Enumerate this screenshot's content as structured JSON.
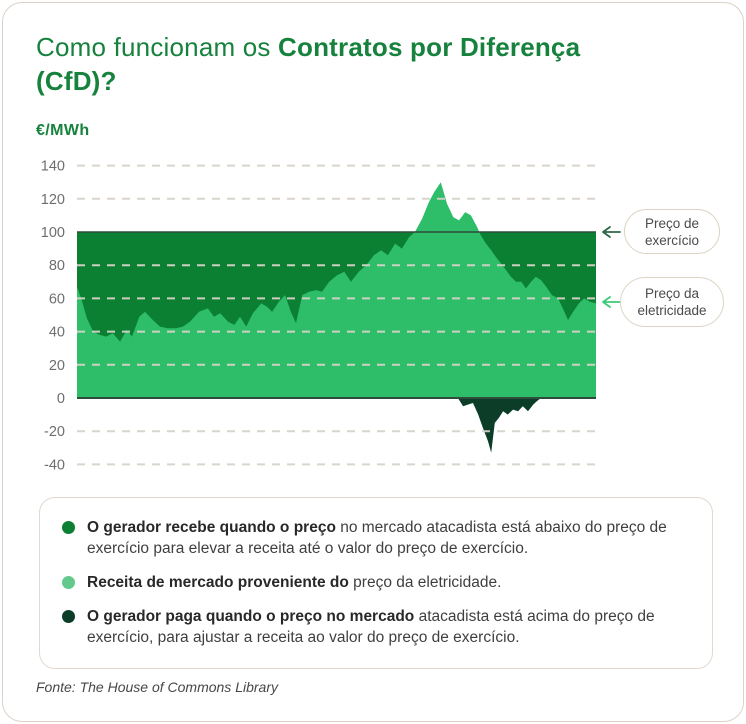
{
  "title": {
    "regular": "Como funcionam os ",
    "bold_line1": "Contratos por Diferença",
    "bold_line2": "(CfD)?"
  },
  "axis_unit": "€/MWh",
  "callouts": {
    "strike": {
      "line1": "Preço de",
      "line2": "exercício",
      "arrow_color": "#2e6648"
    },
    "electricity": {
      "line1": "Preço da",
      "line2": "eletricidade",
      "arrow_color": "#3fca77"
    }
  },
  "legend": {
    "items": [
      {
        "color": "#0b8033",
        "bold": "O gerador recebe quando o preço",
        "rest": " no mercado atacadista está abaixo do preço de exercício para elevar a receita até o valor do preço de exercício."
      },
      {
        "color": "#63ca8c",
        "bold": "Receita de mercado proveniente do",
        "rest": " preço da eletricidade."
      },
      {
        "color": "#0c3d28",
        "bold": "O gerador paga quando o preço no mercado",
        "rest": " atacadista está acima do preço de exercício, para ajustar a receita ao valor do preço de exercício."
      }
    ]
  },
  "source": "Fonte: The House of Commons Library",
  "colors": {
    "title_green": "#16823d",
    "band_green": "#0b8033",
    "price_green": "#2ebd68",
    "payback_dark_green": "#0c3d28",
    "axis_line": "#2e4d3c",
    "gridline": "#d8d2ca",
    "tick_label": "#6d6e6e",
    "border_beige": "#dcd2c7"
  },
  "chart_data": {
    "type": "area",
    "ylabel": "€/MWh",
    "ylim": [
      -40,
      140
    ],
    "yticks": [
      140,
      120,
      100,
      80,
      60,
      40,
      20,
      0,
      -20,
      -40
    ],
    "grid": "dashed-horizontal",
    "strike_price": 100,
    "band": {
      "name": "Gerador recebe (preço abaixo do exercício)",
      "from": 0,
      "to": 100,
      "color": "#0b8033"
    },
    "series": [
      {
        "name": "Preço da eletricidade (receita de mercado)",
        "color": "#2ebd68",
        "x": [
          0,
          0.8,
          1.9,
          3.1,
          4.4,
          5.6,
          6.9,
          8.3,
          9.6,
          10.6,
          12.0,
          13.1,
          14.6,
          16.0,
          17.5,
          19.1,
          20.4,
          21.8,
          23.5,
          25.2,
          26.4,
          27.6,
          29.1,
          30.3,
          31.4,
          32.6,
          33.9,
          35.5,
          36.6,
          37.6,
          38.9,
          40.1,
          41.2,
          42.2,
          43.4,
          44.7,
          46.1,
          47.2,
          48.6,
          50.1,
          51.5,
          52.8,
          54.3,
          55.7,
          57.2,
          58.6,
          59.9,
          61.3,
          62.6,
          64.0,
          65.1,
          66.5,
          67.8,
          68.8,
          70.1,
          71.3,
          72.5,
          73.6,
          74.8,
          75.9,
          77.1,
          77.8,
          78.8,
          79.8,
          80.7,
          81.7,
          82.7,
          83.6,
          84.6,
          85.6,
          86.5,
          87.5,
          88.4,
          89.4,
          90.4,
          91.5,
          92.7,
          93.6,
          94.6,
          95.6,
          96.7,
          97.7,
          98.8,
          100
        ],
        "y": [
          67,
          60,
          48,
          40,
          38,
          37,
          39,
          34,
          41,
          37,
          49,
          52,
          47,
          43,
          42,
          42,
          43,
          46,
          52,
          54,
          49,
          51,
          46,
          44,
          49,
          43,
          51,
          57,
          55,
          52,
          58,
          62,
          52,
          45,
          62,
          64,
          65,
          64,
          70,
          74,
          76,
          70,
          76,
          80,
          86,
          89,
          86,
          93,
          90,
          97,
          100,
          108,
          118,
          124,
          130,
          117,
          109,
          107,
          112,
          110,
          103,
          98,
          93,
          89,
          85,
          81,
          77,
          73,
          70,
          70,
          66,
          70,
          73,
          71,
          67,
          62,
          60,
          54,
          47,
          52,
          57,
          60,
          58,
          57
        ]
      },
      {
        "name": "Pagamento do gerador (preço acima do exercício)",
        "color": "#0c3d28",
        "x": [
          73.4,
          74.4,
          75.3,
          76.3,
          77.3,
          78.2,
          79.2,
          79.8,
          80.5,
          81.3,
          82.1,
          83.0,
          84.0,
          85.0,
          85.9,
          86.9,
          87.9,
          88.6,
          89.4
        ],
        "y": [
          0,
          -5,
          -4,
          -3,
          -10,
          -18,
          -26,
          -33,
          -15,
          -12,
          -8,
          -10,
          -7,
          -8,
          -5,
          -8,
          -4,
          -2,
          0
        ]
      }
    ]
  }
}
